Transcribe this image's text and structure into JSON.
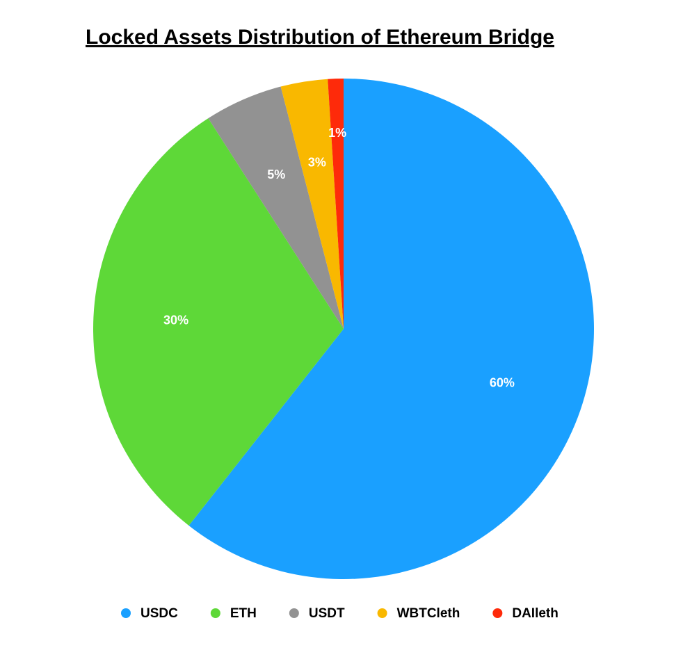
{
  "chart_data": {
    "type": "pie",
    "title": "Locked Assets Distribution of Ethereum Bridge",
    "categories": [
      "USDC",
      "ETH",
      "USDT",
      "WBTCleth",
      "DAIleth"
    ],
    "values": [
      60,
      30,
      5,
      3,
      1
    ],
    "value_labels": [
      "60%",
      "30%",
      "5%",
      "3%",
      "1%"
    ],
    "colors": [
      "#1aa0ff",
      "#5ed838",
      "#929292",
      "#f9b800",
      "#fe2a0a"
    ],
    "legend": "bottom"
  }
}
